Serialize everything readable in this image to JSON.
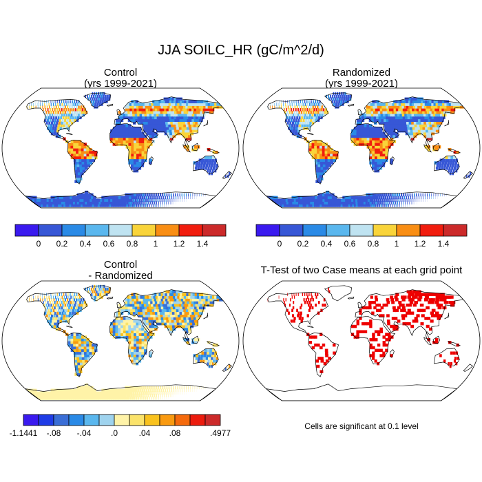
{
  "title": "JJA SOILC_HR (gC/m^2/d)",
  "panels": [
    {
      "title_line1": "Control",
      "title_line2": "(yrs 1999-2021)"
    },
    {
      "title_line1": "Randomized",
      "title_line2": "(yrs 1999-2021)"
    },
    {
      "title_line1": "Control",
      "title_line2": "- Randomized"
    },
    {
      "title_line1": "T-Test of two Case means at each grid point",
      "title_line2": ""
    }
  ],
  "colorbar_main": {
    "colors": [
      "#3a1aef",
      "#3757d6",
      "#2a8ae6",
      "#5ab7ee",
      "#bfe3f1",
      "#f9d43a",
      "#f98e14",
      "#f11d0e",
      "#cc2a2a"
    ],
    "labels": [
      "0",
      "0.2",
      "0.4",
      "0.6",
      "0.8",
      "1",
      "1.2",
      "1.4"
    ]
  },
  "colorbar_diff": {
    "colors": [
      "#3a1aef",
      "#1f3ce6",
      "#3a6ed6",
      "#2a8ae6",
      "#5ab7ee",
      "#9fd3ee",
      "#fff3a8",
      "#fbe36b",
      "#f9c21e",
      "#f99a10",
      "#f56a0c",
      "#ec1c0e",
      "#cc2a2a"
    ],
    "labels": [
      "-1.1441",
      "-.08",
      "-.04",
      ".0",
      ".04",
      ".08",
      ".4977"
    ]
  },
  "significance_note": "Cells are significant at 0.1 level",
  "colors": {
    "land_base": "#3757d6",
    "antarctica_diff": "#fbe9a0",
    "significant": "#ee0000"
  }
}
